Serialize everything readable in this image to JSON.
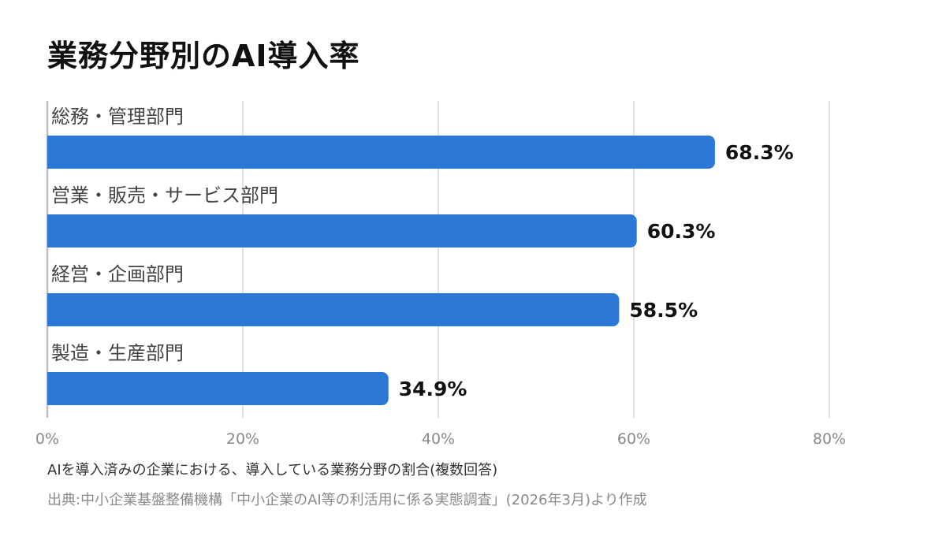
{
  "chart_data": {
    "type": "bar",
    "orientation": "horizontal",
    "title": "業務分野別のAI導入率",
    "categories": [
      "総務・管理部門",
      "営業・販売・サービス部門",
      "経営・企画部門",
      "製造・生産部門"
    ],
    "values": [
      68.3,
      60.3,
      58.5,
      34.9
    ],
    "value_labels": [
      "68.3%",
      "60.3%",
      "58.5%",
      "34.9%"
    ],
    "xlim": [
      0,
      80
    ],
    "x_ticks": [
      0,
      20,
      40,
      60,
      80
    ],
    "x_tick_labels": [
      "0%",
      "20%",
      "40%",
      "60%",
      "80%"
    ],
    "grid": true,
    "bar_color": "#2b78d6",
    "xlabel": "",
    "ylabel": ""
  },
  "footer": {
    "note": "AIを導入済みの企業における、導入している業務分野の割合(複数回答)",
    "source": "出典:中小企業基盤整備機構「中小企業のAI等の利活用に係る実態調査」(2026年3月)より作成"
  }
}
